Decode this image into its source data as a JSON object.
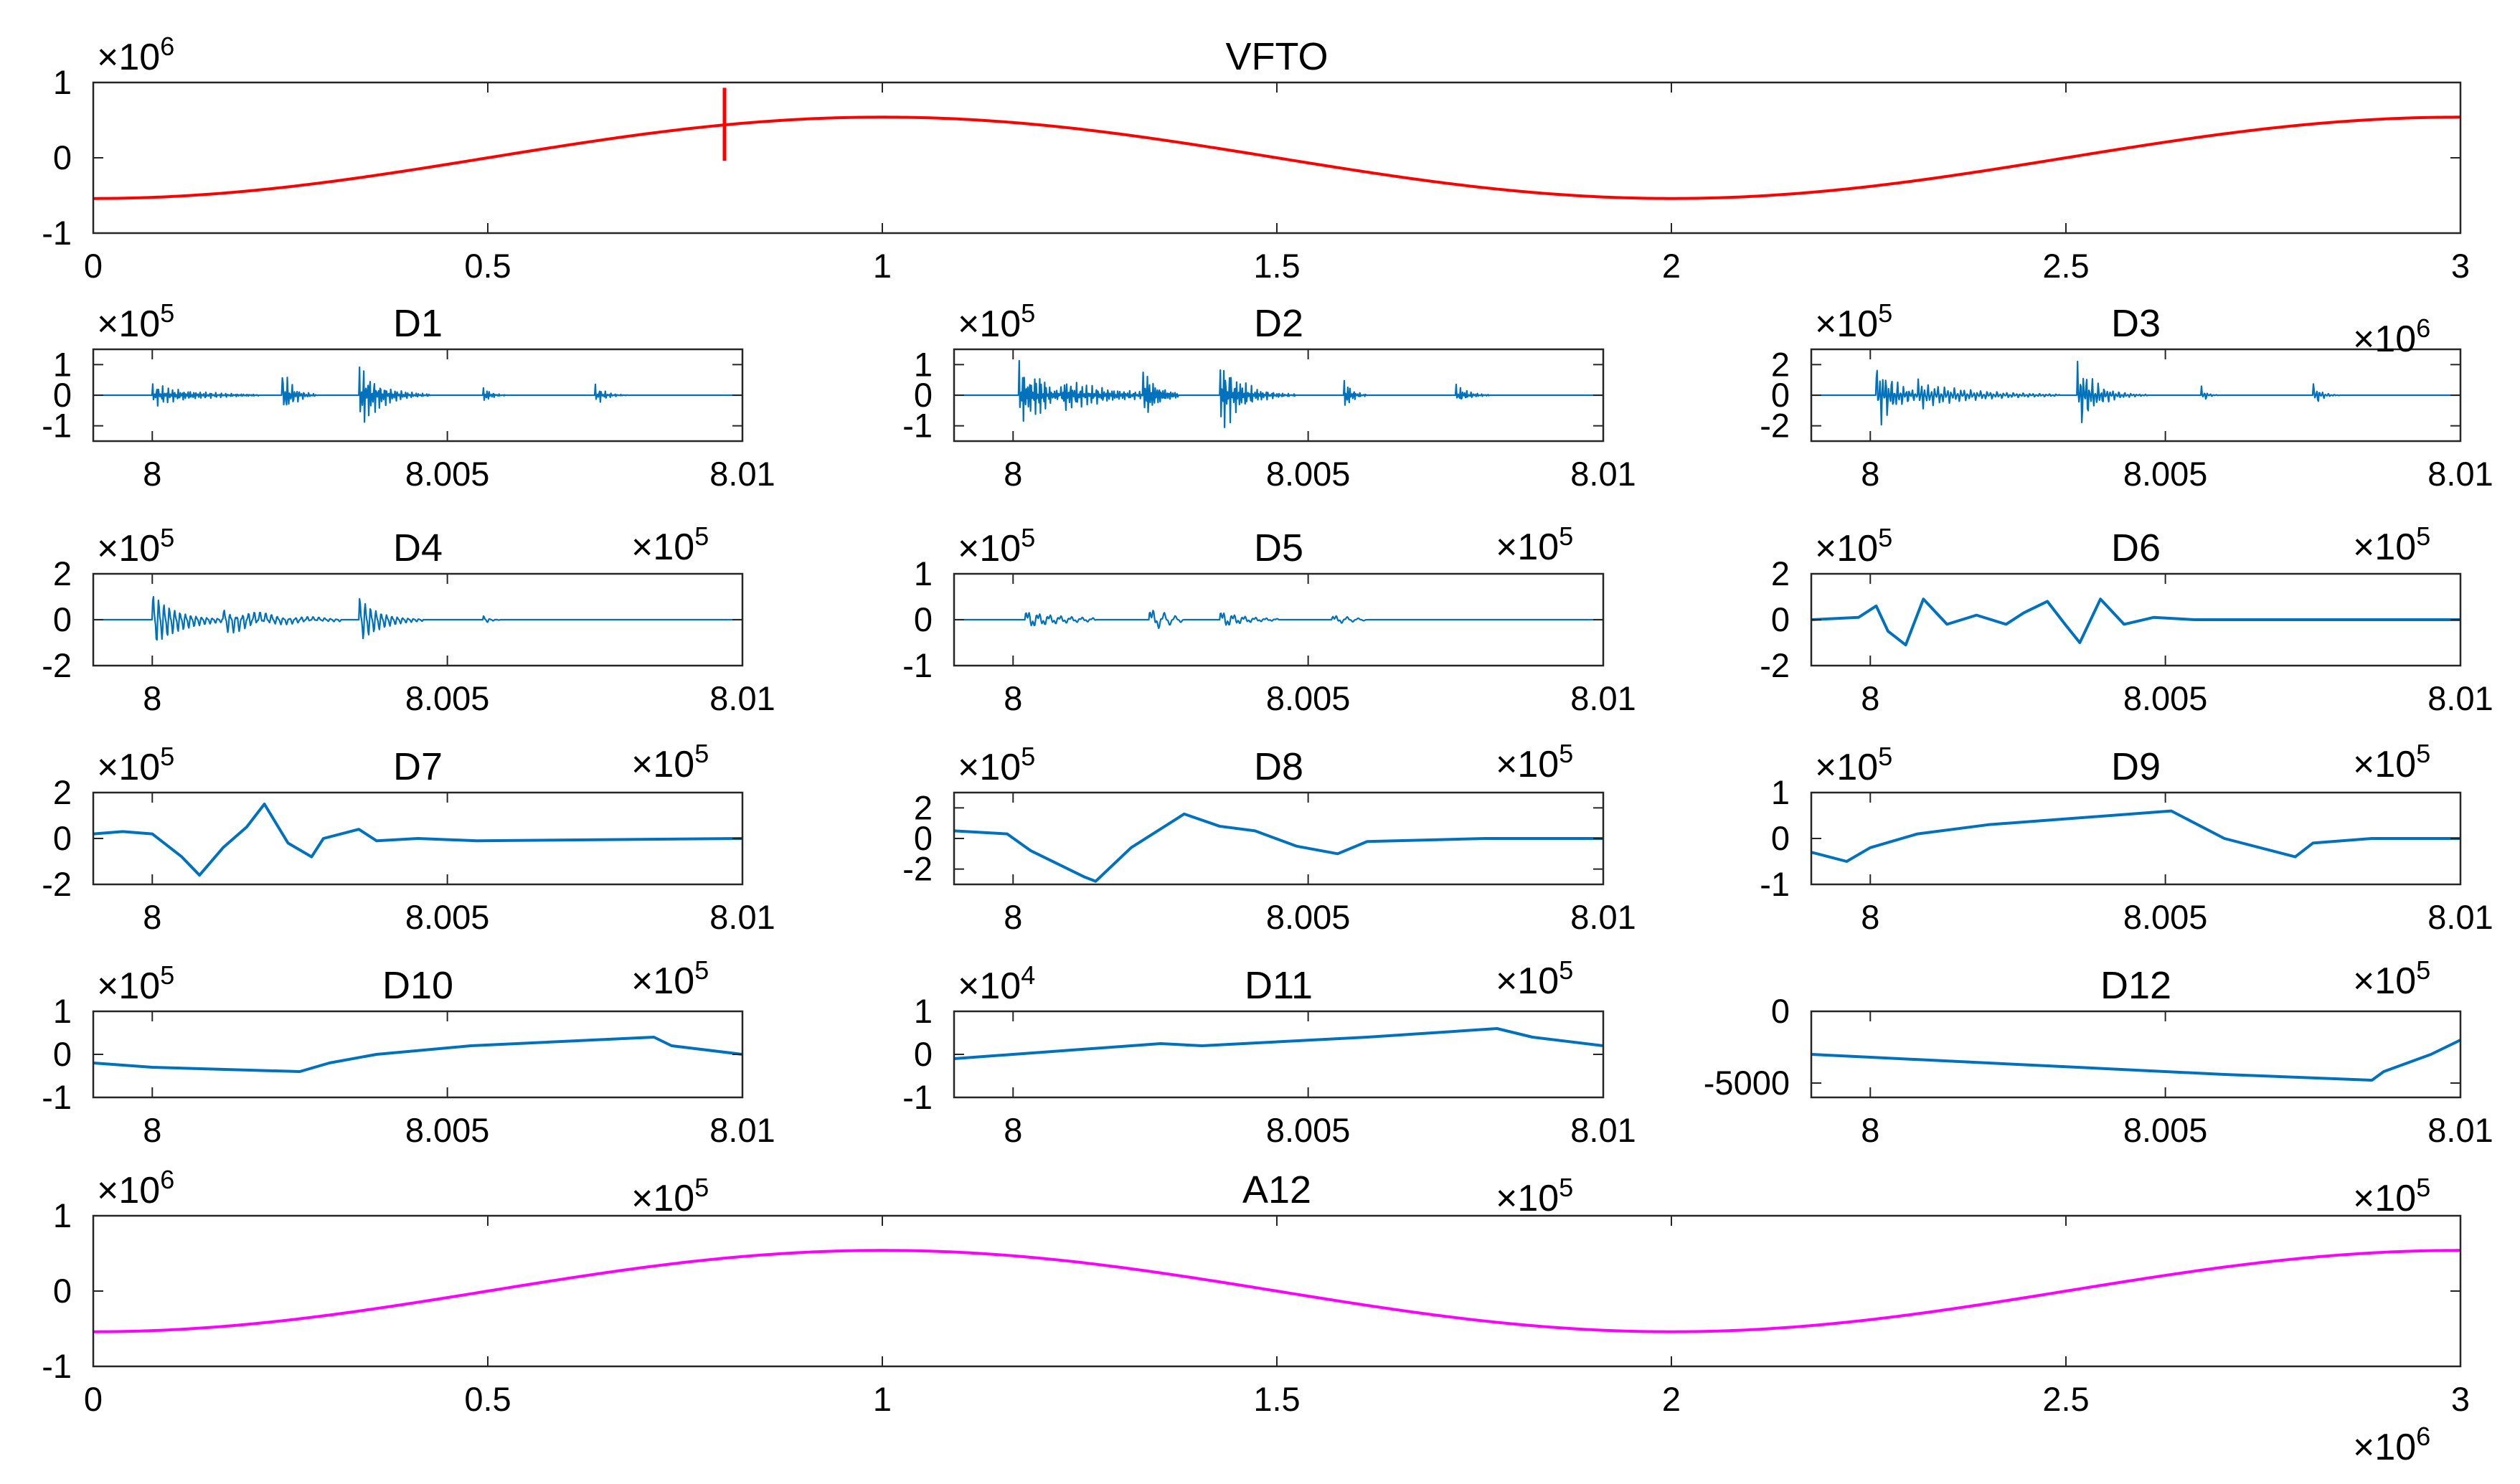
{
  "figure": {
    "background": "#ffffff",
    "axis_color": "#262626"
  },
  "chart_data": [
    {
      "id": "vfto",
      "type": "line",
      "title": "VFTO",
      "color": "#ff0000",
      "xlim": [
        0,
        3000000
      ],
      "ylim": [
        -1000000,
        1000000
      ],
      "xticks": [
        0,
        500000,
        1000000,
        1500000,
        2000000,
        2500000,
        3000000
      ],
      "xtick_labels": [
        "0",
        "0.5",
        "1",
        "1.5",
        "2",
        "2.5",
        "3"
      ],
      "yticks": [
        -1000000,
        0,
        1000000
      ],
      "ytick_labels": [
        "-1",
        "0",
        "1"
      ],
      "y_exponent": {
        "base": "×10",
        "power": "6"
      },
      "series": {
        "kind": "sine",
        "amplitude": 540000,
        "period": 2000000,
        "phase_shift": 500000,
        "spike": {
          "x": 800000,
          "ymin": -40000,
          "ymax": 930000
        }
      }
    },
    {
      "id": "d1",
      "type": "line",
      "title": "D1",
      "color": "#0072bd",
      "xlim": [
        799900,
        801000
      ],
      "ylim": [
        -150000,
        150000
      ],
      "xticks": [
        800000,
        800500,
        801000
      ],
      "xtick_labels": [
        "8",
        "8.005",
        "8.01"
      ],
      "yticks": [
        -100000,
        0,
        100000
      ],
      "ytick_labels": [
        "-1",
        "0",
        "1"
      ],
      "y_exponent": {
        "base": "×10",
        "power": "5"
      },
      "series": {
        "kind": "bursts",
        "bursts": [
          {
            "x": 800000,
            "amp": 40000,
            "dur": 180,
            "freq": 0.3,
            "decay": 70
          },
          {
            "x": 800220,
            "amp": 100000,
            "dur": 60,
            "freq": 0.25,
            "decay": 18
          },
          {
            "x": 800350,
            "amp": 130000,
            "dur": 120,
            "freq": 0.28,
            "decay": 35
          },
          {
            "x": 800560,
            "amp": 40000,
            "dur": 40,
            "freq": 0.3,
            "decay": 12
          },
          {
            "x": 800750,
            "amp": 40000,
            "dur": 55,
            "freq": 0.3,
            "decay": 16
          }
        ]
      }
    },
    {
      "id": "d2",
      "type": "line",
      "title": "D2",
      "color": "#0072bd",
      "xlim": [
        799900,
        801000
      ],
      "ylim": [
        -150000,
        150000
      ],
      "xticks": [
        800000,
        800500,
        801000
      ],
      "xtick_labels": [
        "8",
        "8.005",
        "8.01"
      ],
      "yticks": [
        -100000,
        0,
        100000
      ],
      "ytick_labels": [
        "-1",
        "0",
        "1"
      ],
      "y_exponent": {
        "base": "×10",
        "power": "5"
      },
      "series": {
        "kind": "bursts",
        "bursts": [
          {
            "x": 800010,
            "amp": 150000,
            "dur": 80,
            "freq": 0.35,
            "decay": 40
          },
          {
            "x": 800080,
            "amp": 60000,
            "dur": 200,
            "freq": 0.3,
            "decay": 90
          },
          {
            "x": 800220,
            "amp": 110000,
            "dur": 60,
            "freq": 0.3,
            "decay": 20
          },
          {
            "x": 800350,
            "amp": 150000,
            "dur": 130,
            "freq": 0.32,
            "decay": 35
          },
          {
            "x": 800560,
            "amp": 80000,
            "dur": 40,
            "freq": 0.3,
            "decay": 12
          },
          {
            "x": 800750,
            "amp": 40000,
            "dur": 60,
            "freq": 0.28,
            "decay": 20
          }
        ]
      }
    },
    {
      "id": "d3",
      "type": "line",
      "title": "D3",
      "color": "#0072bd",
      "xlim": [
        799900,
        801000
      ],
      "ylim": [
        -300000,
        300000
      ],
      "xticks": [
        800000,
        800500,
        801000
      ],
      "xtick_labels": [
        "8",
        "8.005",
        "8.01"
      ],
      "yticks": [
        -200000,
        0,
        200000
      ],
      "ytick_labels": [
        "-2",
        "0",
        "2"
      ],
      "y_exponent": {
        "base": "×10",
        "power": "5"
      },
      "series": {
        "kind": "bursts",
        "bursts": [
          {
            "x": 800010,
            "amp": 250000,
            "dur": 90,
            "freq": 0.2,
            "decay": 35
          },
          {
            "x": 800080,
            "amp": 90000,
            "dur": 240,
            "freq": 0.18,
            "decay": 100
          },
          {
            "x": 800350,
            "amp": 270000,
            "dur": 120,
            "freq": 0.2,
            "decay": 30
          },
          {
            "x": 800560,
            "amp": 80000,
            "dur": 30,
            "freq": 0.2,
            "decay": 8
          },
          {
            "x": 800750,
            "amp": 100000,
            "dur": 45,
            "freq": 0.2,
            "decay": 12
          }
        ]
      }
    },
    {
      "id": "d4",
      "type": "line",
      "title": "D4",
      "color": "#0072bd",
      "xlim": [
        799900,
        801000
      ],
      "ylim": [
        -200000,
        200000
      ],
      "xticks": [
        800000,
        800500,
        801000
      ],
      "xtick_labels": [
        "8",
        "8.005",
        "8.01"
      ],
      "yticks": [
        -200000,
        0,
        200000
      ],
      "ytick_labels": [
        "-2",
        "0",
        "2"
      ],
      "y_exponent": {
        "base": "×10",
        "power": "5"
      },
      "series": {
        "kind": "bursts",
        "bursts": [
          {
            "x": 800000,
            "amp": 170000,
            "dur": 120,
            "freq": 0.11,
            "decay": 45
          },
          {
            "x": 800120,
            "amp": 70000,
            "dur": 200,
            "freq": 0.1,
            "decay": 90
          },
          {
            "x": 800350,
            "amp": 150000,
            "dur": 110,
            "freq": 0.11,
            "decay": 35
          },
          {
            "x": 800560,
            "amp": 30000,
            "dur": 30,
            "freq": 0.1,
            "decay": 10
          }
        ]
      }
    },
    {
      "id": "d5",
      "type": "line",
      "title": "D5",
      "color": "#0072bd",
      "xlim": [
        799900,
        801000
      ],
      "ylim": [
        -100000,
        100000
      ],
      "xticks": [
        800000,
        800500,
        801000
      ],
      "xtick_labels": [
        "8",
        "8.005",
        "8.01"
      ],
      "yticks": [
        -100000,
        0,
        100000
      ],
      "ytick_labels": [
        "-1",
        "0",
        "1"
      ],
      "y_exponent": {
        "base": "×10",
        "power": "5"
      },
      "series": {
        "kind": "bursts",
        "bursts": [
          {
            "x": 800020,
            "amp": 40000,
            "dur": 120,
            "freq": 0.055,
            "decay": 60
          },
          {
            "x": 800230,
            "amp": 50000,
            "dur": 60,
            "freq": 0.05,
            "decay": 25
          },
          {
            "x": 800350,
            "amp": 40000,
            "dur": 100,
            "freq": 0.055,
            "decay": 40
          },
          {
            "x": 800540,
            "amp": 20000,
            "dur": 60,
            "freq": 0.05,
            "decay": 25
          }
        ]
      }
    },
    {
      "id": "d6",
      "type": "line",
      "title": "D6",
      "color": "#0072bd",
      "xlim": [
        799900,
        801000
      ],
      "ylim": [
        -200000,
        200000
      ],
      "xticks": [
        800000,
        800500,
        801000
      ],
      "xtick_labels": [
        "8",
        "8.005",
        "8.01"
      ],
      "yticks": [
        -200000,
        0,
        200000
      ],
      "ytick_labels": [
        "-2",
        "0",
        "2"
      ],
      "y_exponent": {
        "base": "×10",
        "power": "5"
      },
      "series": {
        "kind": "poly",
        "points": [
          [
            799900,
            0
          ],
          [
            799980,
            10000
          ],
          [
            800010,
            60000
          ],
          [
            800030,
            -50000
          ],
          [
            800060,
            -110000
          ],
          [
            800090,
            90000
          ],
          [
            800130,
            -20000
          ],
          [
            800180,
            20000
          ],
          [
            800230,
            -20000
          ],
          [
            800260,
            30000
          ],
          [
            800300,
            80000
          ],
          [
            800330,
            -20000
          ],
          [
            800355,
            -100000
          ],
          [
            800390,
            90000
          ],
          [
            800430,
            -20000
          ],
          [
            800480,
            10000
          ],
          [
            800550,
            0
          ],
          [
            800650,
            0
          ],
          [
            801000,
            0
          ]
        ]
      }
    },
    {
      "id": "d7",
      "type": "line",
      "title": "D7",
      "color": "#0072bd",
      "xlim": [
        799900,
        801000
      ],
      "ylim": [
        -200000,
        200000
      ],
      "xticks": [
        800000,
        800500,
        801000
      ],
      "xtick_labels": [
        "8",
        "8.005",
        "8.01"
      ],
      "yticks": [
        -200000,
        0,
        200000
      ],
      "ytick_labels": [
        "-2",
        "0",
        "2"
      ],
      "y_exponent": {
        "base": "×10",
        "power": "5"
      },
      "series": {
        "kind": "poly",
        "points": [
          [
            799900,
            20000
          ],
          [
            799950,
            30000
          ],
          [
            800000,
            20000
          ],
          [
            800050,
            -80000
          ],
          [
            800080,
            -160000
          ],
          [
            800120,
            -40000
          ],
          [
            800160,
            50000
          ],
          [
            800190,
            150000
          ],
          [
            800230,
            -20000
          ],
          [
            800270,
            -80000
          ],
          [
            800290,
            0
          ],
          [
            800350,
            40000
          ],
          [
            800380,
            -10000
          ],
          [
            800450,
            0
          ],
          [
            800550,
            -10000
          ],
          [
            801000,
            0
          ]
        ]
      }
    },
    {
      "id": "d8",
      "type": "line",
      "title": "D8",
      "color": "#0072bd",
      "xlim": [
        799900,
        801000
      ],
      "ylim": [
        -300000,
        300000
      ],
      "xticks": [
        800000,
        800500,
        801000
      ],
      "xtick_labels": [
        "8",
        "8.005",
        "8.01"
      ],
      "yticks": [
        -200000,
        0,
        200000
      ],
      "ytick_labels": [
        "-2",
        "0",
        "2"
      ],
      "y_exponent": {
        "base": "×10",
        "power": "5"
      },
      "series": {
        "kind": "poly",
        "points": [
          [
            799900,
            50000
          ],
          [
            799990,
            30000
          ],
          [
            800030,
            -80000
          ],
          [
            800120,
            -250000
          ],
          [
            800140,
            -280000
          ],
          [
            800200,
            -60000
          ],
          [
            800290,
            160000
          ],
          [
            800350,
            80000
          ],
          [
            800410,
            50000
          ],
          [
            800480,
            -50000
          ],
          [
            800550,
            -100000
          ],
          [
            800600,
            -20000
          ],
          [
            800800,
            0
          ],
          [
            801000,
            0
          ]
        ]
      }
    },
    {
      "id": "d9",
      "type": "line",
      "title": "D9",
      "color": "#0072bd",
      "xlim": [
        799900,
        801000
      ],
      "ylim": [
        -100000,
        100000
      ],
      "xticks": [
        800000,
        800500,
        801000
      ],
      "xtick_labels": [
        "8",
        "8.005",
        "8.01"
      ],
      "yticks": [
        -100000,
        0,
        100000
      ],
      "ytick_labels": [
        "-1",
        "0",
        "1"
      ],
      "y_exponent": {
        "base": "×10",
        "power": "5"
      },
      "series": {
        "kind": "poly",
        "points": [
          [
            799900,
            -30000
          ],
          [
            799960,
            -50000
          ],
          [
            800000,
            -20000
          ],
          [
            800080,
            10000
          ],
          [
            800200,
            30000
          ],
          [
            800510,
            60000
          ],
          [
            800600,
            0
          ],
          [
            800720,
            -40000
          ],
          [
            800750,
            -10000
          ],
          [
            800850,
            0
          ],
          [
            801000,
            0
          ]
        ]
      }
    },
    {
      "id": "d10",
      "type": "line",
      "title": "D10",
      "color": "#0072bd",
      "xlim": [
        799900,
        801000
      ],
      "ylim": [
        -100000,
        100000
      ],
      "xticks": [
        800000,
        800500,
        801000
      ],
      "xtick_labels": [
        "8",
        "8.005",
        "8.01"
      ],
      "yticks": [
        -100000,
        0,
        100000
      ],
      "ytick_labels": [
        "-1",
        "0",
        "1"
      ],
      "y_exponent": {
        "base": "×10",
        "power": "5"
      },
      "series": {
        "kind": "poly",
        "points": [
          [
            799900,
            -20000
          ],
          [
            800000,
            -30000
          ],
          [
            800250,
            -40000
          ],
          [
            800300,
            -20000
          ],
          [
            800380,
            0
          ],
          [
            800540,
            20000
          ],
          [
            800850,
            40000
          ],
          [
            800880,
            20000
          ],
          [
            801000,
            0
          ]
        ]
      }
    },
    {
      "id": "d11",
      "type": "line",
      "title": "D11",
      "color": "#0072bd",
      "xlim": [
        799900,
        801000
      ],
      "ylim": [
        -10000,
        10000
      ],
      "xticks": [
        800000,
        800500,
        801000
      ],
      "xtick_labels": [
        "8",
        "8.005",
        "8.01"
      ],
      "yticks": [
        -10000,
        0,
        10000
      ],
      "ytick_labels": [
        "-1",
        "0",
        "1"
      ],
      "y_exponent": {
        "base": "×10",
        "power": "4"
      },
      "series": {
        "kind": "poly",
        "points": [
          [
            799900,
            -1000
          ],
          [
            800000,
            0
          ],
          [
            800250,
            2500
          ],
          [
            800320,
            2000
          ],
          [
            800600,
            4000
          ],
          [
            800820,
            6000
          ],
          [
            800880,
            4000
          ],
          [
            801000,
            2000
          ]
        ]
      }
    },
    {
      "id": "d12",
      "type": "line",
      "title": "D12",
      "color": "#0072bd",
      "xlim": [
        799900,
        801000
      ],
      "ylim": [
        -6000,
        0
      ],
      "xticks": [
        800000,
        800500,
        801000
      ],
      "xtick_labels": [
        "8",
        "8.005",
        "8.01"
      ],
      "yticks": [
        -5000,
        0
      ],
      "ytick_labels": [
        "-5000",
        "0"
      ],
      "y_exponent": null,
      "series": {
        "kind": "poly",
        "points": [
          [
            799900,
            -3000
          ],
          [
            800000,
            -3200
          ],
          [
            800300,
            -3800
          ],
          [
            800600,
            -4400
          ],
          [
            800850,
            -4800
          ],
          [
            800870,
            -4200
          ],
          [
            800950,
            -3000
          ],
          [
            801000,
            -2000
          ]
        ]
      }
    },
    {
      "id": "a12",
      "type": "line",
      "title": "A12",
      "color": "#ff00ff",
      "xlim": [
        0,
        3000000
      ],
      "ylim": [
        -1000000,
        1000000
      ],
      "xticks": [
        0,
        500000,
        1000000,
        1500000,
        2000000,
        2500000,
        3000000
      ],
      "xtick_labels": [
        "0",
        "0.5",
        "1",
        "1.5",
        "2",
        "2.5",
        "3"
      ],
      "yticks": [
        -1000000,
        0,
        1000000
      ],
      "ytick_labels": [
        "-1",
        "0",
        "1"
      ],
      "y_exponent": {
        "base": "×10",
        "power": "6"
      },
      "series": {
        "kind": "sine",
        "amplitude": 540000,
        "period": 2000000,
        "phase_shift": 500000
      }
    }
  ],
  "orphan_x_exponents": [
    {
      "id": "d3-x",
      "base": "×10",
      "power": "6"
    },
    {
      "id": "d4-x",
      "base": "×10",
      "power": "5"
    },
    {
      "id": "d5-x",
      "base": "×10",
      "power": "5"
    },
    {
      "id": "d6-x",
      "base": "×10",
      "power": "5"
    },
    {
      "id": "d7-x",
      "base": "×10",
      "power": "5"
    },
    {
      "id": "d8-x",
      "base": "×10",
      "power": "5"
    },
    {
      "id": "d9-x",
      "base": "×10",
      "power": "5"
    },
    {
      "id": "d10-x",
      "base": "×10",
      "power": "5"
    },
    {
      "id": "d11-x",
      "base": "×10",
      "power": "5"
    },
    {
      "id": "d12-x",
      "base": "×10",
      "power": "5"
    },
    {
      "id": "a12-top-left-x",
      "base": "×10",
      "power": "5"
    },
    {
      "id": "a12-top-right-x",
      "base": "×10",
      "power": "5"
    },
    {
      "id": "a12-top-far-x",
      "base": "×10",
      "power": "5"
    },
    {
      "id": "a12-x",
      "base": "×10",
      "power": "6"
    }
  ]
}
